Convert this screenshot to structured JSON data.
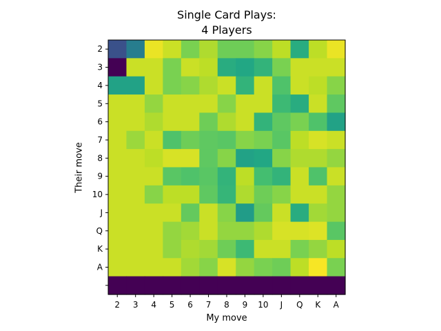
{
  "chart_data": {
    "type": "heatmap",
    "title": "Single Card Plays:\n4 Players",
    "title_lines": [
      "Single Card Plays:",
      "4 Players"
    ],
    "xlabel": "My move",
    "ylabel": "Their move",
    "x_categories": [
      "2",
      "3",
      "4",
      "5",
      "6",
      "7",
      "8",
      "9",
      "10",
      "J",
      "Q",
      "K",
      "A"
    ],
    "y_categories": [
      "2",
      "3",
      "4",
      "5",
      "6",
      "7",
      "8",
      "9",
      "10",
      "J",
      "Q",
      "K",
      "A",
      ""
    ],
    "colormap": "viridis",
    "vmin": 0,
    "vmax": 1,
    "values": [
      [
        0.25,
        0.42,
        0.97,
        0.92,
        0.8,
        0.88,
        0.78,
        0.78,
        0.82,
        0.9,
        0.62,
        0.9,
        0.97
      ],
      [
        0.0,
        0.92,
        0.92,
        0.8,
        0.92,
        0.9,
        0.62,
        0.6,
        0.65,
        0.8,
        0.92,
        0.92,
        0.92
      ],
      [
        0.58,
        0.58,
        0.92,
        0.8,
        0.82,
        0.88,
        0.92,
        0.65,
        0.92,
        0.72,
        0.92,
        0.9,
        0.82
      ],
      [
        0.92,
        0.92,
        0.84,
        0.92,
        0.92,
        0.92,
        0.82,
        0.92,
        0.92,
        0.68,
        0.62,
        0.92,
        0.75
      ],
      [
        0.92,
        0.92,
        0.88,
        0.92,
        0.92,
        0.78,
        0.88,
        0.92,
        0.65,
        0.75,
        0.8,
        0.72,
        0.58
      ],
      [
        0.92,
        0.85,
        0.92,
        0.72,
        0.78,
        0.75,
        0.74,
        0.82,
        0.8,
        0.74,
        0.9,
        0.94,
        0.92
      ],
      [
        0.92,
        0.92,
        0.9,
        0.94,
        0.94,
        0.75,
        0.82,
        0.58,
        0.6,
        0.82,
        0.88,
        0.88,
        0.84
      ],
      [
        0.92,
        0.92,
        0.92,
        0.74,
        0.72,
        0.74,
        0.65,
        0.9,
        0.7,
        0.65,
        0.92,
        0.72,
        0.92
      ],
      [
        0.92,
        0.92,
        0.82,
        0.9,
        0.9,
        0.75,
        0.66,
        0.88,
        0.78,
        0.82,
        0.92,
        0.92,
        0.84
      ],
      [
        0.92,
        0.92,
        0.92,
        0.92,
        0.76,
        0.92,
        0.82,
        0.55,
        0.76,
        0.92,
        0.62,
        0.86,
        0.84
      ],
      [
        0.92,
        0.92,
        0.92,
        0.84,
        0.86,
        0.92,
        0.84,
        0.84,
        0.88,
        0.94,
        0.94,
        0.95,
        0.74
      ],
      [
        0.92,
        0.92,
        0.92,
        0.84,
        0.88,
        0.86,
        0.78,
        0.68,
        0.92,
        0.92,
        0.8,
        0.84,
        0.9
      ],
      [
        0.92,
        0.92,
        0.92,
        0.92,
        0.86,
        0.82,
        0.94,
        0.84,
        0.8,
        0.78,
        0.9,
        0.99,
        0.8
      ],
      [
        0.0,
        0.0,
        0.0,
        0.0,
        0.0,
        0.0,
        0.0,
        0.0,
        0.0,
        0.0,
        0.0,
        0.0,
        0.0
      ]
    ],
    "grid": false,
    "legend": "none"
  }
}
